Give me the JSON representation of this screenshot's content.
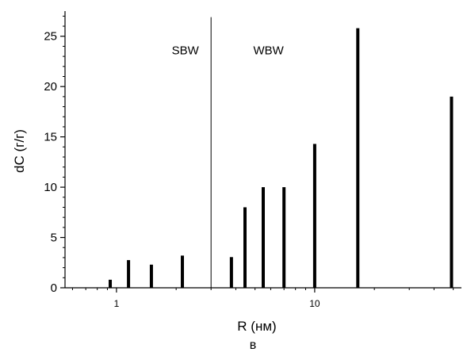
{
  "chart_data": {
    "type": "bar",
    "xscale": "log",
    "xlabel": "R (нм)",
    "ylabel": "dC (г/г)",
    "caption": "в",
    "xlim": [
      0.55,
      55
    ],
    "ylim": [
      0,
      27.5
    ],
    "xticks": [
      {
        "value": 1,
        "label": "1"
      },
      {
        "value": 10,
        "label": "10"
      }
    ],
    "yticks": [
      {
        "value": 0,
        "label": "0"
      },
      {
        "value": 5,
        "label": "5"
      },
      {
        "value": 10,
        "label": "10"
      },
      {
        "value": 15,
        "label": "15"
      },
      {
        "value": 20,
        "label": "20"
      },
      {
        "value": 25,
        "label": "25"
      }
    ],
    "divider_x": 3.0,
    "annotations": [
      {
        "text": "SBW",
        "x": 1.9,
        "y": 23.2
      },
      {
        "text": "WBW",
        "x": 4.9,
        "y": 23.2
      }
    ],
    "x": [
      0.93,
      1.15,
      1.5,
      2.15,
      3.8,
      4.45,
      5.5,
      7.0,
      10.0,
      16.5,
      49.0
    ],
    "values": [
      0.8,
      2.75,
      2.3,
      3.2,
      3.05,
      8.0,
      10.0,
      10.0,
      14.3,
      25.8,
      19.0
    ],
    "bar_color": "#000000",
    "grid": false
  }
}
